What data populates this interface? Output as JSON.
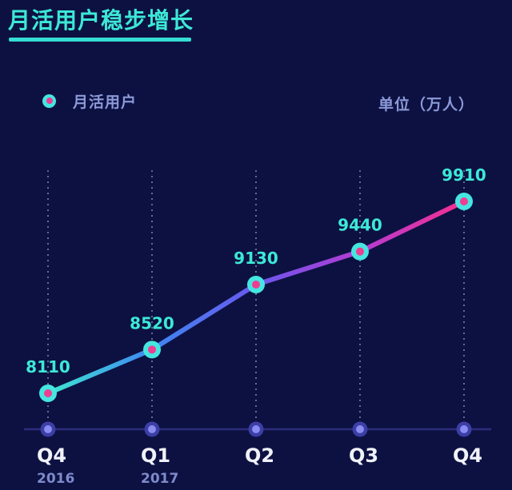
{
  "header": {
    "title": "月活用户稳步增长"
  },
  "legend": {
    "label": "月活用户",
    "position": "top-left"
  },
  "unit_label": "单位（万人）",
  "chart_data": {
    "type": "line",
    "title": "月活用户稳步增长",
    "unit": "万人",
    "categories": [
      "Q4",
      "Q1",
      "Q2",
      "Q3",
      "Q4"
    ],
    "category_years": [
      "2016",
      "2017",
      "",
      "",
      ""
    ],
    "series": [
      {
        "name": "月活用户",
        "values": [
          8110,
          8520,
          9130,
          9440,
          9910
        ]
      }
    ],
    "value_labels_shown": true,
    "grid": "vertical-dashed",
    "x_axis_shown": true,
    "y_axis_shown": false,
    "legend_position": "top-left"
  },
  "colors": {
    "background": "#0d1142",
    "title": "#3ce9d6",
    "title_underline": "#35ddd2",
    "legend_text": "#8c9ad8",
    "unit_text": "#8c9ad8",
    "value_label": "#3ce9d6",
    "quarter_label": "#f0f2fa",
    "year_label": "#7e8bca",
    "grid_dash": "#aab3d4",
    "axis_line": "#2c2e7a",
    "axis_dot_outer": "#3c3ea6",
    "axis_dot_inner": "#8a8cf2",
    "marker_ring": "#45e6e0",
    "marker_center": "#ef3d92",
    "line_gradient": [
      "#3FE6D2",
      "#3E87F2",
      "#6A58EE",
      "#B43BD2",
      "#F5308F"
    ]
  }
}
